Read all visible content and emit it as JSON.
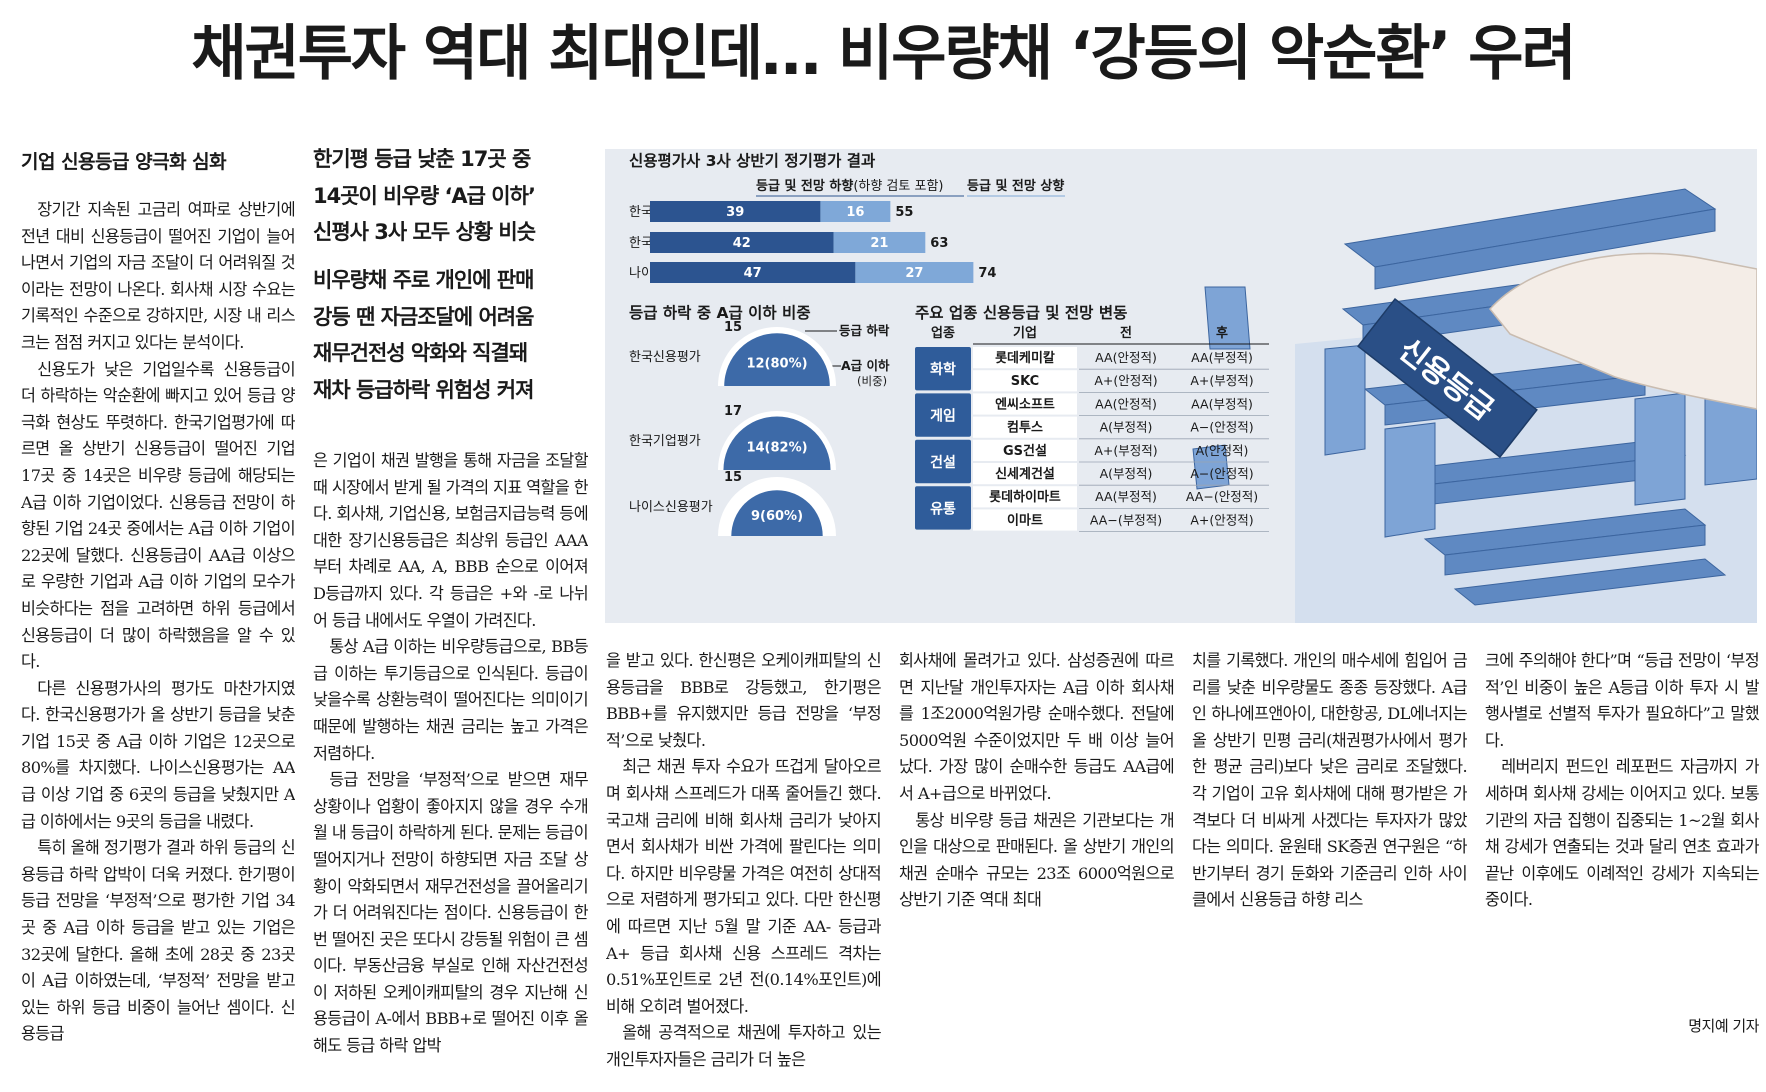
{
  "headline": "채권투자 역대 최대인데… 비우량채 ‘강등의 악순환’ 우려",
  "subhead": "기업 신용등급 양극화 심화",
  "deck1": [
    "한기평 등급 낮춘 17곳 중",
    "14곳이 비우량 ‘A급 이하’",
    "신평사 3사 모두 상황 비슷"
  ],
  "deck2": [
    "비우량채 주로 개인에 판매",
    "강등 땐 자금조달에 어려움",
    "재무건전성 악화와 직결돼",
    "재차 등급하락 위험성 커져"
  ],
  "body": {
    "col1": [
      "장기간 지속된 고금리 여파로 상반기에 전년 대비 신용등급이 떨어진 기업이 늘어나면서 기업의 자금 조달이 더 어려워질 것이라는 전망이 나온다. 회사채 시장 수요는 기록적인 수준으로 강하지만, 시장 내 리스크는 점점 커지고 있다는 분석이다.",
      "신용도가 낮은 기업일수록 신용등급이 더 하락하는 악순환에 빠지고 있어 등급 양극화 현상도 뚜렷하다. 한국기업평가에 따르면 올 상반기 신용등급이 떨어진 기업 17곳 중 14곳은 비우량 등급에 해당되는 A급 이하 기업이었다. 신용등급 전망이 하향된 기업 24곳 중에서는 A급 이하 기업이 22곳에 달했다. 신용등급이 AA급 이상으로 우량한 기업과 A급 이하 기업의 모수가 비슷하다는 점을 고려하면 하위 등급에서 신용등급이 더 많이 하락했음을 알 수 있다.",
      "다른 신용평가사의 평가도 마찬가지였다. 한국신용평가가 올 상반기 등급을 낮춘 기업 15곳 중 A급 이하 기업은 12곳으로 80%를 차지했다. 나이스신용평가는 AA급 이상 기업 중 6곳의 등급을 낮췄지만 A급 이하에서는 9곳의 등급을 내렸다.",
      "특히 올해 정기평가 결과 하위 등급의 신용등급 하락 압박이 더욱 커졌다. 한기평이 등급 전망을 ‘부정적’으로 평가한 기업 34곳 중 A급 이하 등급을 받고 있는 기업은 32곳에 달한다. 올해 초에 28곳 중 23곳이 A급 이하였는데, ‘부정적’ 전망을 받고 있는 하위 등급 비중이 늘어난 셈이다. 신용등급"
    ],
    "col2": [
      "은 기업이 채권 발행을 통해 자금을 조달할 때 시장에서 받게 될 가격의 지표 역할을 한다. 회사채, 기업신용, 보험금지급능력 등에 대한 장기신용등급은 최상위 등급인 AAA부터 차례로 AA, A, BBB 순으로 이어져 D등급까지 있다. 각 등급은 +와 -로 나뉘어 등급 내에서도 우열이 가려진다.",
      "통상 A급 이하는 비우량등급으로, BB등급 이하는 투기등급으로 인식된다. 등급이 낮을수록 상환능력이 떨어진다는 의미이기 때문에 발행하는 채권 금리는 높고 가격은 저렴하다.",
      "등급 전망을 ‘부정적’으로 받으면 재무 상황이나 업황이 좋아지지 않을 경우 수개월 내 등급이 하락하게 된다. 문제는 등급이 떨어지거나 전망이 하향되면 자금 조달 상황이 악화되면서 재무건전성을 끌어올리기가 더 어려워진다는 점이다. 신용등급이 한 번 떨어진 곳은 또다시 강등될 위험이 큰 셈이다. 부동산금융 부실로 인해 자산건전성이 저하된 오케이캐피탈의 경우 지난해 신용등급이 A-에서 BBB+로 떨어진 이후 올해도 등급 하락 압박"
    ],
    "col3": [
      "을 받고 있다. 한신평은 오케이캐피탈의 신용등급을 BBB로 강등했고, 한기평은 BBB+를 유지했지만 등급 전망을 ‘부정적’으로 낮췄다.",
      "최근 채권 투자 수요가 뜨겁게 달아오르며 회사채 스프레드가 대폭 줄어들긴 했다. 국고채 금리에 비해 회사채 금리가 낮아지면서 회사채가 비싼 가격에 팔린다는 의미다. 하지만 비우량물 가격은 여전히 상대적으로 저렴하게 평가되고 있다. 다만 한신평에 따르면 지난 5월 말 기준 AA- 등급과 A+ 등급 회사채 신용 스프레드 격차는 0.51%포인트로 2년 전(0.14%포인트)에 비해 오히려 벌어졌다.",
      "올해 공격적으로 채권에 투자하고 있는 개인투자자들은 금리가 더 높은"
    ],
    "col4": [
      "회사채에 몰려가고 있다. 삼성증권에 따르면 지난달 개인투자자는 A급 이하 회사채를 1조2000억원가량 순매수했다. 전달에 5000억원 수준이었지만 두 배 이상 늘어났다. 가장 많이 순매수한 등급도 AA급에서 A+급으로 바뀌었다.",
      "통상 비우량 등급 채권은 기관보다는 개인을 대상으로 판매된다. 올 상반기 개인의 채권 순매수 규모는 23조 6000억원으로 상반기 기준 역대 최대"
    ],
    "col5": [
      "치를 기록했다. 개인의 매수세에 힘입어 금리를 낮춘 비우량물도 종종 등장했다. A급인 하나에프앤아이, 대한항공, DL에너지는 올 상반기 민평 금리(채권평가사에서 평가한 평균 금리)보다 낮은 금리로 조달했다. 각 기업이 고유 회사채에 대해 평가받은 가격보다 더 비싸게 사겠다는 투자자가 많았다는 의미다. 윤원태 SK증권 연구원은 “하반기부터 경기 둔화와 기준금리 인하 사이클에서 신용등급 하향 리스"
    ],
    "col6": [
      "크에 주의해야 한다”며 “등급 전망이 ‘부정적’인 비중이 높은 A등급 이하 투자 시 발행사별로 선별적 투자가 필요하다”고 말했다.",
      "레버리지 펀드인 레포펀드 자금까지 가세하며 회사채 강세는 이어지고 있다. 보통 기관의 자금 집행이 집중되는 1~2월 회사채 강세가 연출되는 것과 달리 연초 효과가 끝난 이후에도 이례적인 강세가 지속되는 중이다."
    ]
  },
  "byline": "명지예 기자",
  "infographic": {
    "block_label": "신용등급",
    "chart_data": [
      {
        "type": "bar",
        "title": "신용평가사 3사 상반기 정기평가 결과",
        "legend": [
          {
            "bold": "등급 및 전망 하향",
            "normal": "(하향 검토 포함)"
          },
          {
            "bold": "등급 및 전망 상향",
            "normal": ""
          }
        ],
        "categories": [
          "한국신용평가",
          "한국기업평가",
          "나이스신용평가"
        ],
        "series": [
          {
            "name": "등급 및 전망 하향",
            "values": [
              39,
              42,
              47
            ],
            "color": "#2c5490"
          },
          {
            "name": "등급 및 전망 상향",
            "values": [
              16,
              21,
              27
            ],
            "color": "#7fa8d8"
          }
        ],
        "totals": [
          55,
          63,
          74
        ]
      },
      {
        "type": "pie",
        "title": "등급 하락 중 A급 이하 비중",
        "legend": {
          "outer": "등급 하락",
          "inner": "A급 이하",
          "inner_sub": "(비중)"
        },
        "categories": [
          "한국신용평가",
          "한국기업평가",
          "나이스신용평가"
        ],
        "totals": [
          15,
          17,
          15
        ],
        "a_below": [
          12,
          14,
          9
        ],
        "a_below_labels": [
          "12(80%)",
          "14(82%)",
          "9(60%)"
        ],
        "color": "#3d6aa8"
      },
      {
        "type": "table",
        "title": "주요 업종 신용등급 및 전망 변동",
        "headers": [
          "업종",
          "기업",
          "전",
          "후"
        ],
        "groups": [
          {
            "sector": "화학",
            "rows": [
              [
                "롯데케미칼",
                "AA(안정적)",
                "AA(부정적)"
              ],
              [
                "SKC",
                "A+(안정적)",
                "A+(부정적)"
              ]
            ]
          },
          {
            "sector": "게임",
            "rows": [
              [
                "엔씨소프트",
                "AA(안정적)",
                "AA(부정적)"
              ],
              [
                "컴투스",
                "A(부정적)",
                "A−(안정적)"
              ]
            ]
          },
          {
            "sector": "건설",
            "rows": [
              [
                "GS건설",
                "A+(부정적)",
                "A(안정적)"
              ],
              [
                "신세계건설",
                "A(부정적)",
                "A−(안정적)"
              ]
            ]
          },
          {
            "sector": "유통",
            "rows": [
              [
                "롯데하이마트",
                "AA(부정적)",
                "AA−(안정적)"
              ],
              [
                "이마트",
                "AA−(부정적)",
                "A+(안정적)"
              ]
            ]
          }
        ],
        "sector_color": "#2f5c9a"
      }
    ]
  }
}
